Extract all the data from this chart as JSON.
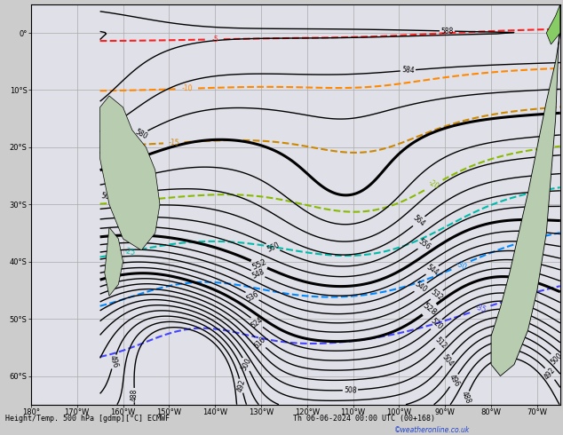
{
  "title_bottom": "Height/Temp. 500 hPa [gdmp][°C] ECMWF",
  "title_date": "Th 06-06-2024 00:00 UTC (00+168)",
  "copyright": "©weatheronline.co.uk",
  "bg_color": "#cccccc",
  "map_bg": "#e0e0e8",
  "land_color": "#b8ccb0",
  "land_green": "#88cc66",
  "grid_color": "#aaaaaa",
  "z500_color": "#000000",
  "temp_colors": {
    "-5": "#ff2020",
    "-10": "#ff8800",
    "-15": "#cc8800",
    "-20": "#88bb00",
    "-25": "#00bbaa",
    "-30": "#0088ff",
    "-35": "#4444ff"
  },
  "figsize": [
    6.34,
    4.9
  ],
  "dpi": 100
}
